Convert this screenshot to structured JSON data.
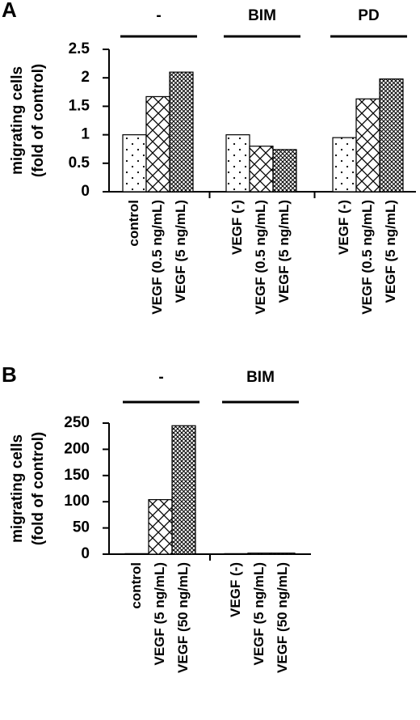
{
  "chart_data": [
    {
      "type": "bar",
      "panel": "A",
      "ylabel": [
        "migrating cells",
        "(fold of control)"
      ],
      "patterns": [
        "dots",
        "cross",
        "dense-cross"
      ],
      "ylim": [
        0,
        2.5
      ],
      "yticks": [
        0,
        0.5,
        1,
        1.5,
        2,
        2.5
      ],
      "groups": [
        {
          "name": "-",
          "categories": [
            "control",
            "VEGF (0.5 ng/mL)",
            "VEGF (5 ng/mL)"
          ],
          "values": [
            1.0,
            1.67,
            2.1
          ]
        },
        {
          "name": "BIM",
          "categories": [
            "VEGF (-)",
            "VEGF (0.5 ng/mL)",
            "VEGF (5 ng/mL)"
          ],
          "values": [
            1.0,
            0.8,
            0.74
          ]
        },
        {
          "name": "PD",
          "categories": [
            "VEGF (-)",
            "VEGF (0.5 ng/mL)",
            "VEGF (5 ng/mL)"
          ],
          "values": [
            0.95,
            1.63,
            1.98
          ]
        }
      ]
    },
    {
      "type": "bar",
      "panel": "B",
      "ylabel": [
        "migrating cells",
        "(fold of control)"
      ],
      "patterns": [
        "dots",
        "cross",
        "dense-cross"
      ],
      "ylim": [
        0,
        250
      ],
      "yticks": [
        0,
        50,
        100,
        150,
        200,
        250
      ],
      "groups": [
        {
          "name": "-",
          "categories": [
            "control",
            "VEGF (5 ng/mL)",
            "VEGF (50 ng/mL)"
          ],
          "values": [
            1,
            104,
            245
          ]
        },
        {
          "name": "BIM",
          "categories": [
            "VEGF (-)",
            "VEGF (5 ng/mL)",
            "VEGF (50 ng/mL)"
          ],
          "values": [
            1,
            2,
            2
          ]
        }
      ]
    }
  ]
}
